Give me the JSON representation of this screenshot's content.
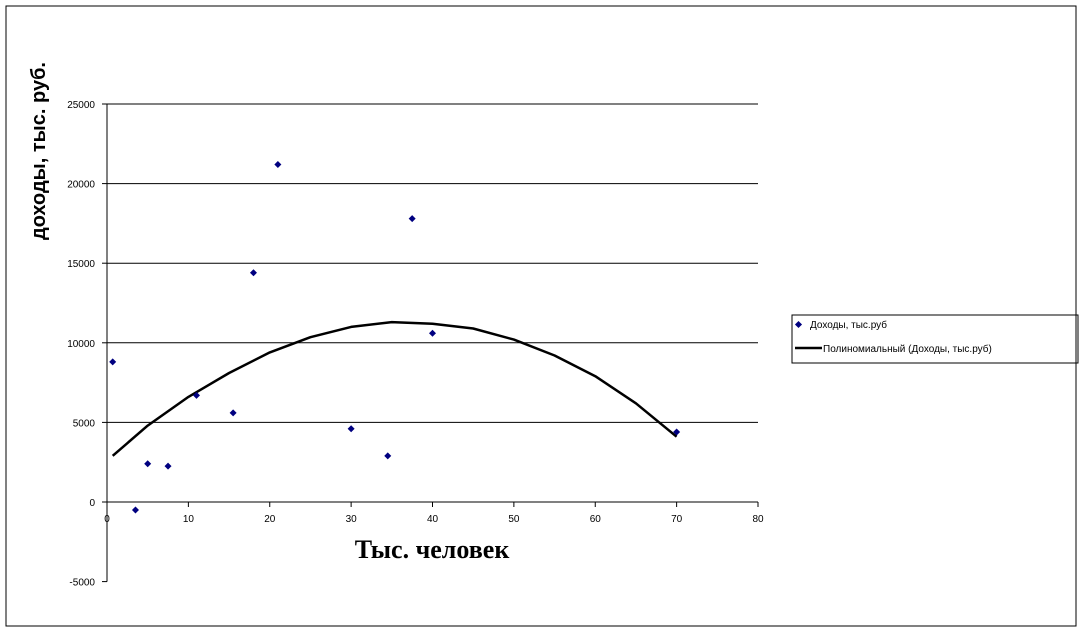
{
  "chart_data": {
    "type": "scatter",
    "xlabel": "Тыс. человек",
    "ylabel": "доходы, тыс. руб.",
    "xlim": [
      0,
      80
    ],
    "ylim": [
      -5000,
      25000
    ],
    "x_ticks": [
      "0",
      "10",
      "20",
      "30",
      "40",
      "50",
      "60",
      "70",
      "80"
    ],
    "y_ticks": [
      "-5000",
      "0",
      "5000",
      "10000",
      "15000",
      "20000",
      "25000"
    ],
    "grid": "horizontal",
    "legend_position": "right",
    "colors": {
      "points": "#000080",
      "trend": "#000000",
      "grid": "#000000"
    },
    "series": [
      {
        "name": "Доходы, тыс.руб",
        "kind": "points",
        "points": [
          {
            "x": 0.7,
            "y": 8800
          },
          {
            "x": 3.5,
            "y": -500
          },
          {
            "x": 5,
            "y": 2400
          },
          {
            "x": 7.5,
            "y": 2250
          },
          {
            "x": 11,
            "y": 6700
          },
          {
            "x": 15.5,
            "y": 5600
          },
          {
            "x": 18,
            "y": 14400
          },
          {
            "x": 21,
            "y": 21200
          },
          {
            "x": 30,
            "y": 4600
          },
          {
            "x": 34.5,
            "y": 2900
          },
          {
            "x": 37.5,
            "y": 17800
          },
          {
            "x": 40,
            "y": 10600
          },
          {
            "x": 70,
            "y": 4400
          }
        ]
      },
      {
        "name": "Полиномиальный (Доходы, тыс.руб)",
        "kind": "trend",
        "points": [
          {
            "x": 0.7,
            "y": 2900
          },
          {
            "x": 5,
            "y": 4800
          },
          {
            "x": 10,
            "y": 6600
          },
          {
            "x": 15,
            "y": 8100
          },
          {
            "x": 20,
            "y": 9400
          },
          {
            "x": 25,
            "y": 10350
          },
          {
            "x": 30,
            "y": 11000
          },
          {
            "x": 35,
            "y": 11300
          },
          {
            "x": 40,
            "y": 11200
          },
          {
            "x": 45,
            "y": 10900
          },
          {
            "x": 50,
            "y": 10200
          },
          {
            "x": 55,
            "y": 9200
          },
          {
            "x": 60,
            "y": 7900
          },
          {
            "x": 65,
            "y": 6200
          },
          {
            "x": 70,
            "y": 4100
          }
        ]
      }
    ]
  }
}
